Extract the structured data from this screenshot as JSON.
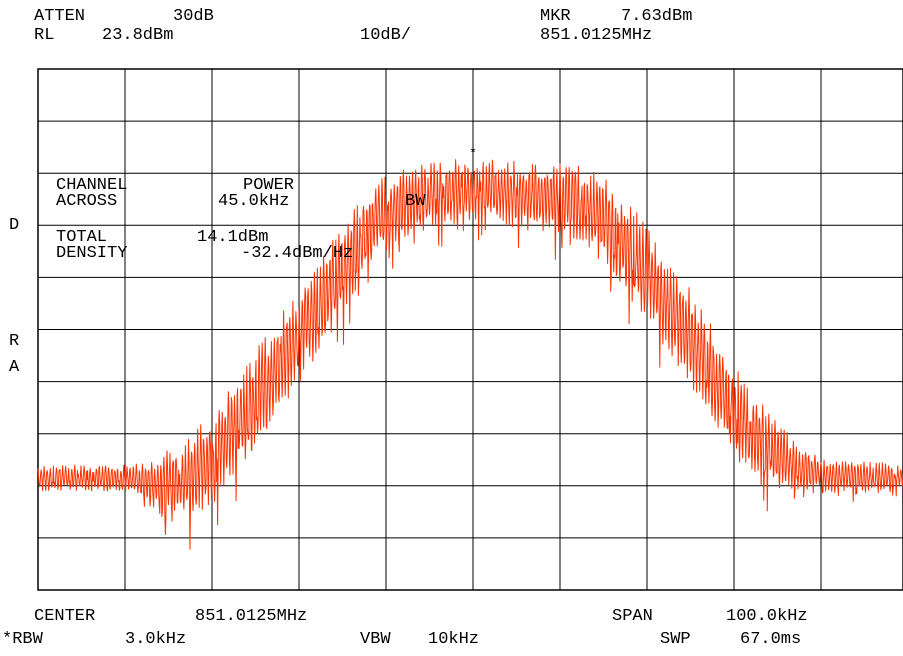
{
  "header": {
    "atten_label": "ATTEN",
    "atten_value": "30dB",
    "rl_label": "RL",
    "rl_value": "23.8dBm",
    "scale": "10dB/",
    "mkr_label": "MKR",
    "mkr_value": "7.63dBm",
    "mkr_freq": "851.0125MHz"
  },
  "side": {
    "d": "D",
    "r": "R",
    "a": "A"
  },
  "measurement": {
    "line1_a": "CHANNEL",
    "line1_b": "POWER",
    "line2_a": "ACROSS",
    "line2_b": "45.0kHz",
    "line2_c": "BW",
    "line3_a": "TOTAL",
    "line3_b": "14.1dBm",
    "line4_a": "DENSITY",
    "line4_b": "-32.4dBm/Hz"
  },
  "footer": {
    "center_label": "CENTER",
    "center_value": "851.0125MHz",
    "span_label": "SPAN",
    "span_value": "100.0kHz",
    "rbw_label": "*RBW",
    "rbw_value": "3.0kHz",
    "vbw_label": "VBW",
    "vbw_value": "10kHz",
    "swp_label": "SWP",
    "swp_value": "67.0ms"
  },
  "chart_data": {
    "type": "line",
    "x_unit": "kHz offset from center",
    "y_unit": "dBm",
    "xlim": [
      -50,
      50
    ],
    "ylim": [
      -76.2,
      23.8
    ],
    "grid": true,
    "divisions_x": 10,
    "divisions_y": 10,
    "trace_color": "#ff3300",
    "marker": {
      "x": 0,
      "y": 7.63
    },
    "envelope_x": [
      -50,
      -40,
      -37,
      -33,
      -29,
      -25,
      -20,
      -15,
      -11,
      -6,
      0,
      6,
      11,
      15,
      20,
      25,
      29,
      33,
      37,
      40,
      50
    ],
    "envelope_y": [
      -52,
      -52,
      -51,
      -47,
      -40,
      -30,
      -18,
      -6,
      3,
      6,
      7,
      6,
      6,
      4,
      -6,
      -18,
      -30,
      -40,
      -47,
      -51,
      -52
    ],
    "envelope_depth": [
      4,
      4,
      7,
      12,
      14,
      14,
      14,
      13,
      11,
      10,
      9,
      10,
      11,
      13,
      14,
      14,
      14,
      12,
      8,
      5,
      4
    ]
  }
}
